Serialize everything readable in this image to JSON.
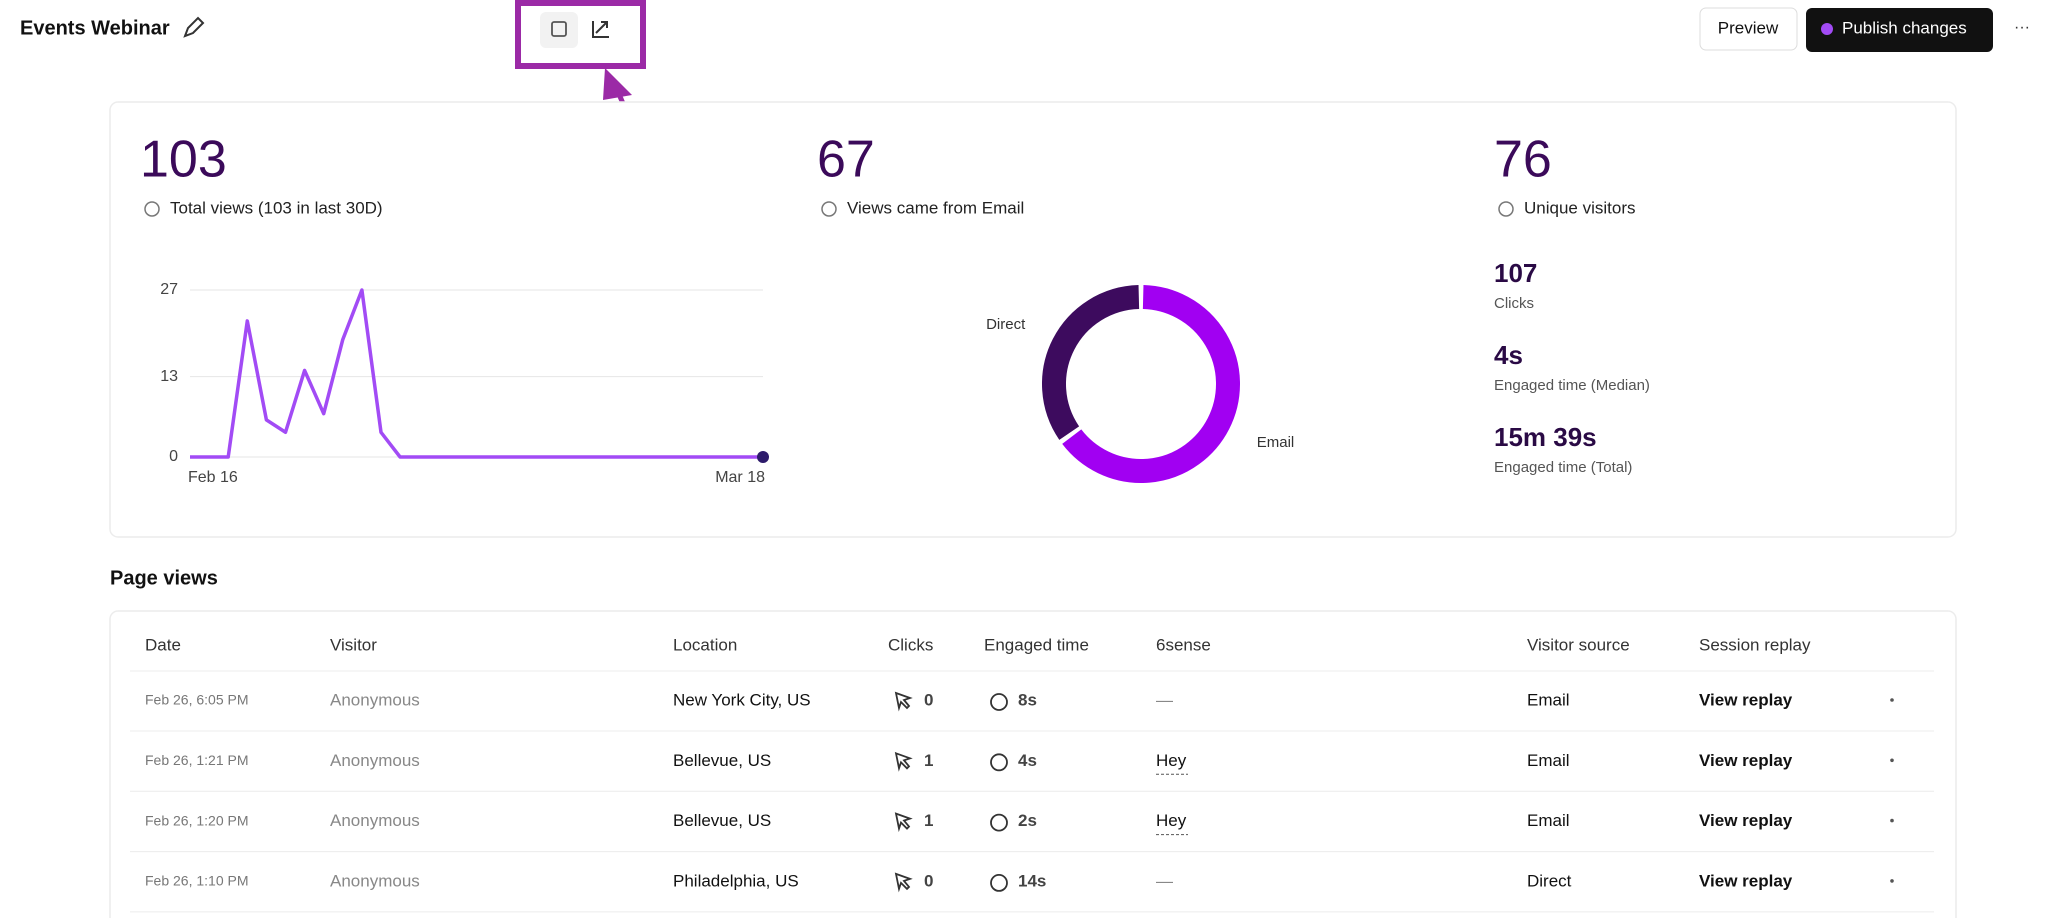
{
  "header": {
    "title": "Events Webinar",
    "preview": "Preview",
    "publish": "Publish changes",
    "more": "···"
  },
  "stats": [
    {
      "value": "103",
      "label": "Total views (103 in last 30D)"
    },
    {
      "value": "67",
      "label": "Views came from Email"
    },
    {
      "value": "76",
      "label": "Unique visitors"
    }
  ],
  "line_chart": {
    "type": "line",
    "categories": [
      "Feb 16",
      null,
      null,
      null,
      null,
      null,
      null,
      null,
      null,
      null,
      null,
      null,
      null,
      null,
      null,
      null,
      null,
      null,
      null,
      null,
      null,
      null,
      null,
      null,
      null,
      null,
      null,
      null,
      null,
      null,
      "Mar 18"
    ],
    "values": [
      0,
      0,
      0,
      22,
      6,
      4,
      14,
      7,
      19,
      27,
      4,
      0,
      0,
      0,
      0,
      0,
      0,
      0,
      0,
      0,
      0,
      0,
      0,
      0,
      0,
      0,
      0,
      0,
      0,
      0,
      0
    ],
    "color": "#a24bf5",
    "ylim": [
      0,
      27
    ],
    "yticks": [
      0,
      13,
      27
    ],
    "grid": true
  },
  "donut_chart": {
    "type": "pie",
    "categories": [
      "Direct",
      "Email"
    ],
    "values": [
      36,
      67
    ],
    "colors": [
      "#3d0b5e",
      "#a100f2"
    ]
  },
  "metrics": [
    {
      "value": "107",
      "label": "Clicks"
    },
    {
      "value": "4s",
      "label": "Engaged time (Median)"
    },
    {
      "value": "15m 39s",
      "label": "Engaged time (Total)"
    }
  ],
  "section_title": "Page views",
  "table": {
    "columns": [
      "Date",
      "Visitor",
      "Location",
      "Clicks",
      "Engaged time",
      "6sense",
      "Visitor source",
      "Session replay"
    ],
    "rows": [
      [
        "Feb 26, 6:05 PM",
        "Anonymous",
        "New York City, US",
        "0",
        "8s",
        "—",
        "Email",
        "View replay"
      ],
      [
        "Feb 26, 1:21 PM",
        "Anonymous",
        "Bellevue, US",
        "1",
        "4s",
        "Hey",
        "Email",
        "View replay"
      ],
      [
        "Feb 26, 1:20 PM",
        "Anonymous",
        "Bellevue, US",
        "1",
        "2s",
        "Hey",
        "Email",
        "View replay"
      ],
      [
        "Feb 26, 1:10 PM",
        "Anonymous",
        "Philadelphia, US",
        "0",
        "14s",
        "—",
        "Direct",
        "View replay"
      ]
    ]
  }
}
